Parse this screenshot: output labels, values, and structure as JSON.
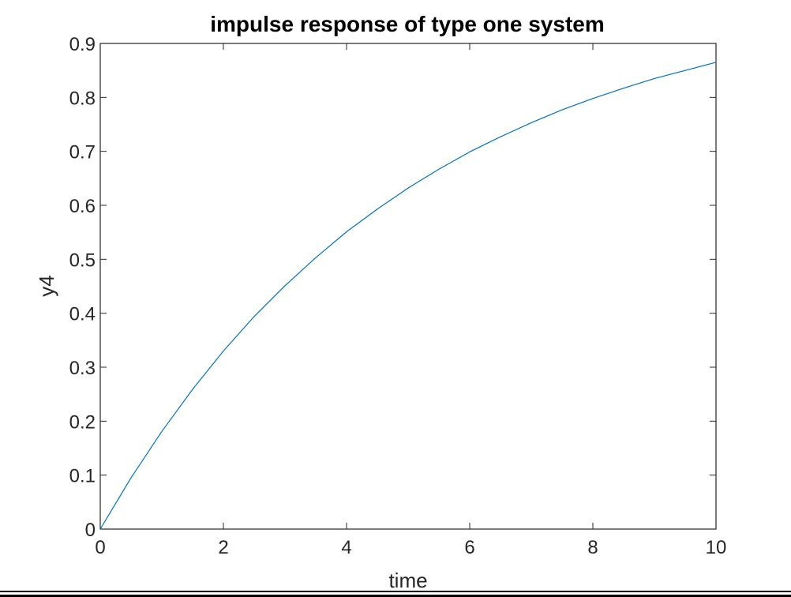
{
  "chart_data": {
    "type": "line",
    "title": "impulse response of type one system",
    "xlabel": "time",
    "ylabel": "y4",
    "xlim": [
      0,
      10
    ],
    "ylim": [
      0,
      0.9
    ],
    "xticks": [
      0,
      2,
      4,
      6,
      8,
      10
    ],
    "xtick_labels": [
      "0",
      "2",
      "4",
      "6",
      "8",
      "10"
    ],
    "yticks": [
      0,
      0.1,
      0.2,
      0.3,
      0.4,
      0.5,
      0.6,
      0.7,
      0.8,
      0.9
    ],
    "ytick_labels": [
      "0",
      "0.1",
      "0.2",
      "0.3",
      "0.4",
      "0.5",
      "0.6",
      "0.7",
      "0.8",
      "0.9"
    ],
    "grid": false,
    "legend": "none",
    "series": [
      {
        "color": "#0072BD",
        "x": [
          0,
          0.5,
          1,
          1.5,
          2,
          2.5,
          3,
          3.5,
          4,
          4.5,
          5,
          5.5,
          6,
          6.5,
          7,
          7.5,
          8,
          8.5,
          9,
          9.5,
          10
        ],
        "y": [
          0,
          0.095,
          0.181,
          0.259,
          0.33,
          0.394,
          0.451,
          0.503,
          0.551,
          0.593,
          0.632,
          0.667,
          0.699,
          0.727,
          0.753,
          0.777,
          0.798,
          0.817,
          0.835,
          0.85,
          0.865
        ]
      }
    ]
  }
}
